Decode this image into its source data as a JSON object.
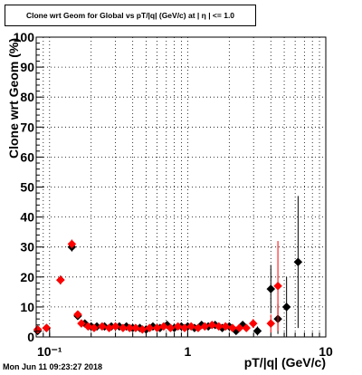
{
  "chart_data": {
    "type": "scatter",
    "title": "Clone wrt Geom for Global vs pT/|q| (GeV/c) at | η | <= 1.0",
    "xlabel": "pT/|q| (GeV/c)",
    "ylabel": "Clone wrt Geom (%)",
    "xscale": "log",
    "xlim": [
      0.08,
      10
    ],
    "ylim": [
      0,
      100
    ],
    "xtick_labels": [
      "10⁻¹",
      "1",
      "10"
    ],
    "xtick_values": [
      0.1,
      1,
      10
    ],
    "ytick_labels": [
      "0",
      "10",
      "20",
      "30",
      "40",
      "50",
      "60",
      "70",
      "80",
      "90",
      "100"
    ],
    "ytick_values": [
      0,
      10,
      20,
      30,
      40,
      50,
      60,
      70,
      80,
      90,
      100
    ],
    "grid": true,
    "series": [
      {
        "marker": "diamond",
        "color": "#000000",
        "points": [
          {
            "x": 0.082,
            "y": 2.0,
            "err": 1.0
          },
          {
            "x": 0.095,
            "y": 3.0,
            "err": 0.8
          },
          {
            "x": 0.12,
            "y": 19.0,
            "err": 1.5
          },
          {
            "x": 0.145,
            "y": 30.0,
            "err": 1.5
          },
          {
            "x": 0.16,
            "y": 7.0,
            "err": 0.8
          },
          {
            "x": 0.18,
            "y": 4.5,
            "err": 0.5
          },
          {
            "x": 0.2,
            "y": 3.5,
            "err": 0.5
          },
          {
            "x": 0.22,
            "y": 3.5,
            "err": 0.5
          },
          {
            "x": 0.25,
            "y": 3.5,
            "err": 0.5
          },
          {
            "x": 0.28,
            "y": 3.5,
            "err": 0.5
          },
          {
            "x": 0.32,
            "y": 3.5,
            "err": 0.5
          },
          {
            "x": 0.36,
            "y": 3.5,
            "err": 0.5
          },
          {
            "x": 0.4,
            "y": 3.0,
            "err": 0.5
          },
          {
            "x": 0.45,
            "y": 3.0,
            "err": 0.5
          },
          {
            "x": 0.5,
            "y": 2.5,
            "err": 0.5
          },
          {
            "x": 0.56,
            "y": 3.5,
            "err": 0.5
          },
          {
            "x": 0.63,
            "y": 3.0,
            "err": 0.5
          },
          {
            "x": 0.71,
            "y": 4.0,
            "err": 0.5
          },
          {
            "x": 0.8,
            "y": 3.0,
            "err": 0.5
          },
          {
            "x": 0.9,
            "y": 3.5,
            "err": 0.5
          },
          {
            "x": 1.0,
            "y": 3.5,
            "err": 0.5
          },
          {
            "x": 1.12,
            "y": 3.0,
            "err": 0.6
          },
          {
            "x": 1.26,
            "y": 4.0,
            "err": 0.6
          },
          {
            "x": 1.41,
            "y": 3.5,
            "err": 0.6
          },
          {
            "x": 1.58,
            "y": 4.0,
            "err": 0.7
          },
          {
            "x": 1.78,
            "y": 3.0,
            "err": 0.7
          },
          {
            "x": 2.0,
            "y": 3.5,
            "err": 0.8
          },
          {
            "x": 2.24,
            "y": 2.0,
            "err": 0.8
          },
          {
            "x": 2.5,
            "y": 4.0,
            "err": 1.0
          },
          {
            "x": 3.2,
            "y": 2.0,
            "err": 1.5
          },
          {
            "x": 4.0,
            "y": 16.0,
            "err": 8.0
          },
          {
            "x": 4.5,
            "y": 6.0,
            "err": 5.0
          },
          {
            "x": 5.2,
            "y": 10.0,
            "err": 10.0
          },
          {
            "x": 6.3,
            "y": 25.0,
            "err": 22.0
          }
        ]
      },
      {
        "marker": "diamond",
        "color": "#ff0000",
        "points": [
          {
            "x": 0.082,
            "y": 2.5,
            "err": 1.0
          },
          {
            "x": 0.095,
            "y": 3.0,
            "err": 0.8
          },
          {
            "x": 0.12,
            "y": 19.0,
            "err": 1.5
          },
          {
            "x": 0.145,
            "y": 31.0,
            "err": 1.5
          },
          {
            "x": 0.16,
            "y": 7.5,
            "err": 0.8
          },
          {
            "x": 0.17,
            "y": 4.5,
            "err": 0.5
          },
          {
            "x": 0.19,
            "y": 3.5,
            "err": 0.5
          },
          {
            "x": 0.21,
            "y": 3.0,
            "err": 0.5
          },
          {
            "x": 0.24,
            "y": 3.5,
            "err": 0.5
          },
          {
            "x": 0.27,
            "y": 3.0,
            "err": 0.5
          },
          {
            "x": 0.3,
            "y": 3.5,
            "err": 0.5
          },
          {
            "x": 0.34,
            "y": 3.0,
            "err": 0.5
          },
          {
            "x": 0.38,
            "y": 3.0,
            "err": 0.5
          },
          {
            "x": 0.42,
            "y": 3.0,
            "err": 0.5
          },
          {
            "x": 0.47,
            "y": 2.5,
            "err": 0.5
          },
          {
            "x": 0.53,
            "y": 3.0,
            "err": 0.5
          },
          {
            "x": 0.6,
            "y": 3.0,
            "err": 0.5
          },
          {
            "x": 0.67,
            "y": 3.5,
            "err": 0.5
          },
          {
            "x": 0.75,
            "y": 3.0,
            "err": 0.5
          },
          {
            "x": 0.85,
            "y": 3.5,
            "err": 0.5
          },
          {
            "x": 0.95,
            "y": 3.0,
            "err": 0.5
          },
          {
            "x": 1.06,
            "y": 3.5,
            "err": 0.6
          },
          {
            "x": 1.19,
            "y": 3.0,
            "err": 0.6
          },
          {
            "x": 1.33,
            "y": 3.5,
            "err": 0.6
          },
          {
            "x": 1.5,
            "y": 4.0,
            "err": 0.7
          },
          {
            "x": 1.68,
            "y": 3.5,
            "err": 0.7
          },
          {
            "x": 1.88,
            "y": 3.5,
            "err": 0.8
          },
          {
            "x": 2.11,
            "y": 3.0,
            "err": 0.8
          },
          {
            "x": 2.37,
            "y": 3.0,
            "err": 1.0
          },
          {
            "x": 2.66,
            "y": 3.0,
            "err": 1.0
          },
          {
            "x": 2.98,
            "y": 4.5,
            "err": 1.5
          },
          {
            "x": 4.0,
            "y": 4.5,
            "err": 3.0
          },
          {
            "x": 4.5,
            "y": 17.0,
            "err": 15.0
          }
        ]
      }
    ]
  },
  "footer": {
    "timestamp": "Mon Jun 11 09:23:27 2018"
  }
}
